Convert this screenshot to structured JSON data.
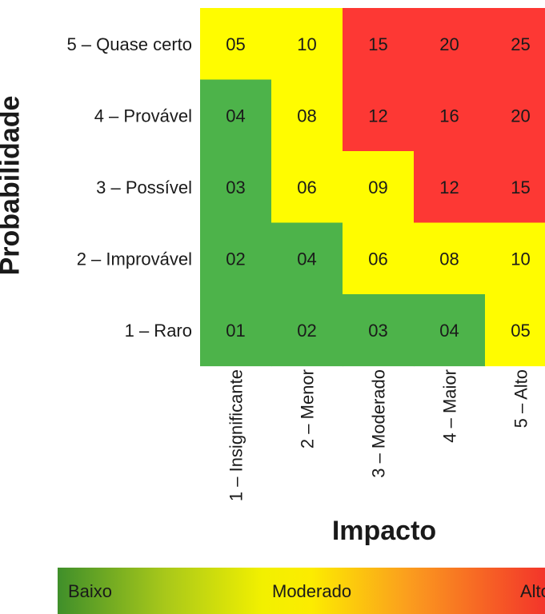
{
  "chart_data": {
    "type": "heatmap",
    "ylabel": "Probabilidade",
    "xlabel": "Impacto",
    "rows": [
      "5 – Quase certo",
      "4 – Provável",
      "3 – Possível",
      "2 – Improvável",
      "1 – Raro"
    ],
    "columns": [
      "1 – Insignificante",
      "2 – Menor",
      "3 – Moderado",
      "4 – Maior",
      "5 – Alto"
    ],
    "values": [
      [
        "05",
        "10",
        "15",
        "20",
        "25"
      ],
      [
        "04",
        "08",
        "12",
        "16",
        "20"
      ],
      [
        "03",
        "06",
        "09",
        "12",
        "15"
      ],
      [
        "02",
        "04",
        "06",
        "08",
        "10"
      ],
      [
        "01",
        "02",
        "03",
        "04",
        "05"
      ]
    ],
    "levels": [
      [
        "Moderado",
        "Moderado",
        "Alto",
        "Alto",
        "Alto"
      ],
      [
        "Baixo",
        "Moderado",
        "Alto",
        "Alto",
        "Alto"
      ],
      [
        "Baixo",
        "Moderado",
        "Moderado",
        "Alto",
        "Alto"
      ],
      [
        "Baixo",
        "Baixo",
        "Moderado",
        "Moderado",
        "Moderado"
      ],
      [
        "Baixo",
        "Baixo",
        "Baixo",
        "Baixo",
        "Moderado"
      ]
    ],
    "colors": {
      "Baixo": "#4db34a",
      "Moderado": "#fffc00",
      "Alto": "#fd3834"
    }
  },
  "legend": {
    "low": "Baixo",
    "mid": "Moderado",
    "high": "Alto"
  }
}
